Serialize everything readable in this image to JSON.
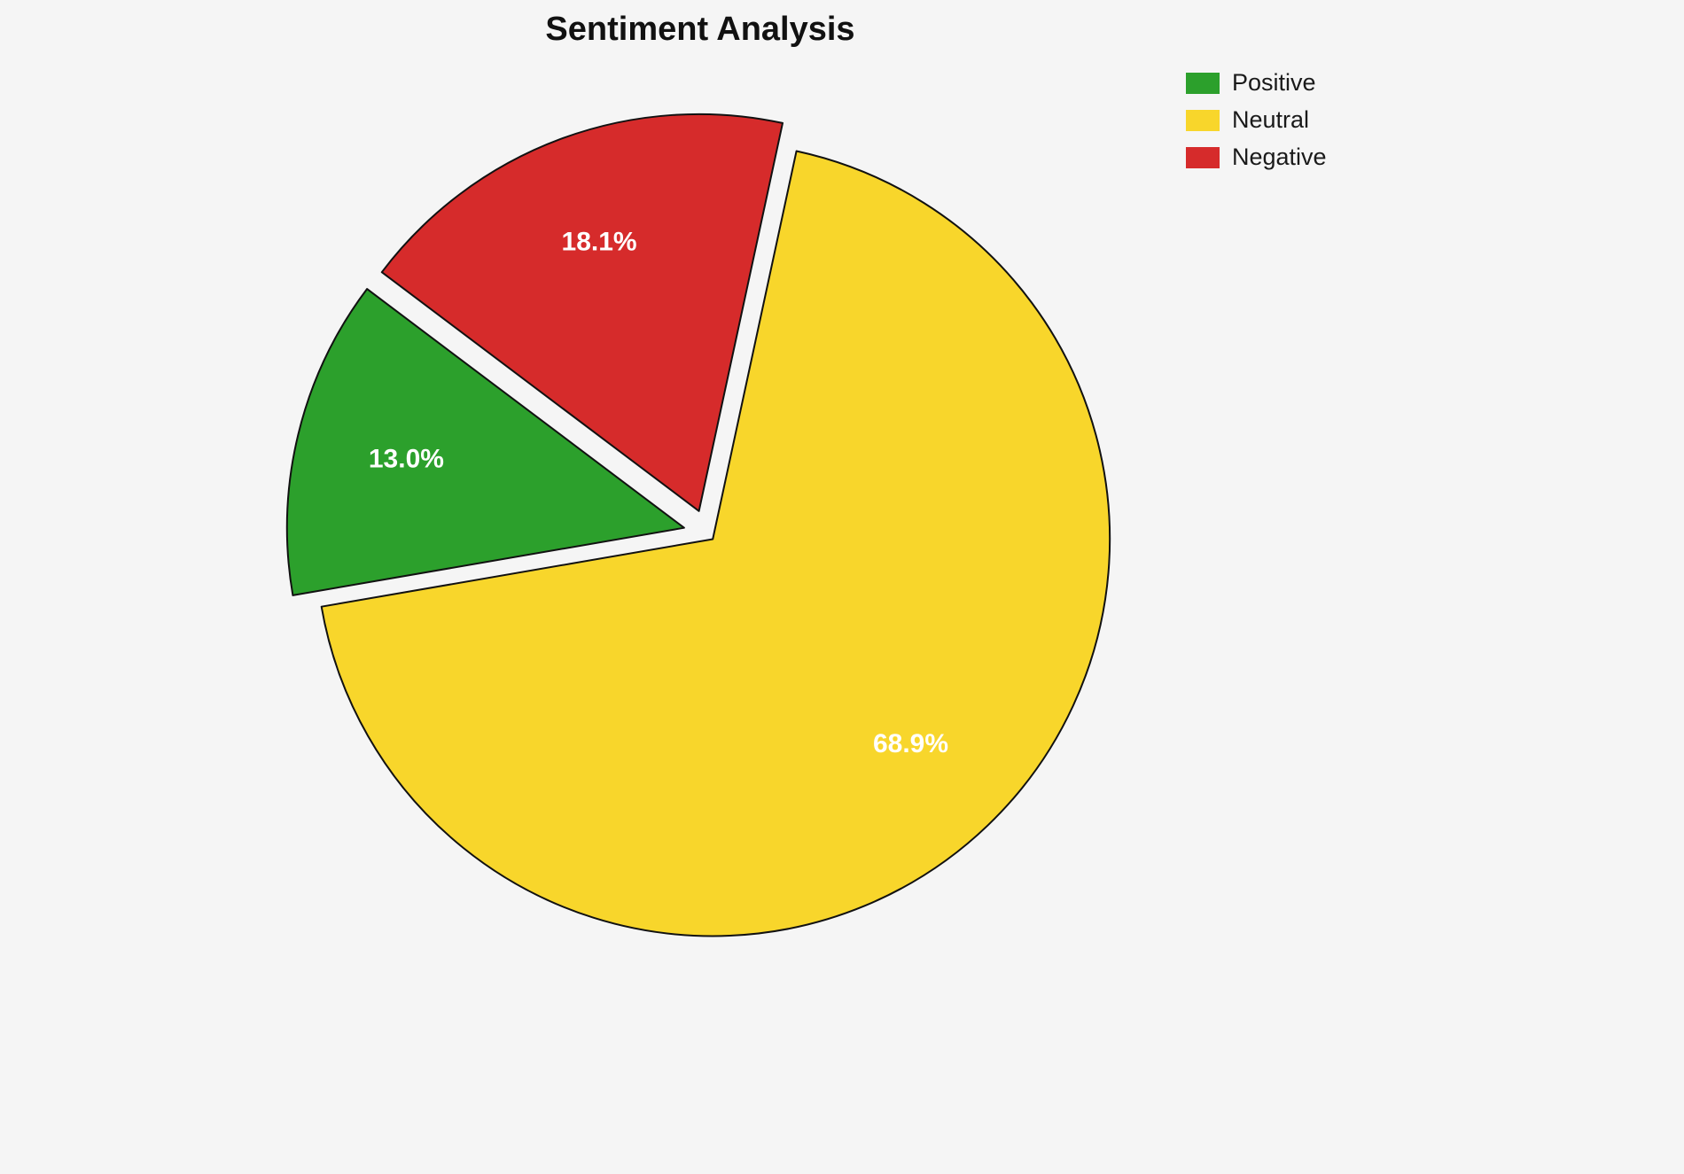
{
  "title": "Sentiment Analysis",
  "background_color": "#f5f5f5",
  "chart_data": {
    "type": "pie",
    "title": "Sentiment Analysis",
    "categories": [
      "Positive",
      "Neutral",
      "Negative"
    ],
    "values": [
      13.0,
      68.9,
      18.1
    ],
    "percent_labels": [
      "13.0%",
      "68.9%",
      "18.1%"
    ],
    "colors": [
      "#2ca02c",
      "#f8d62b",
      "#d62b2b"
    ],
    "edge_color": "#111111",
    "label_color": "#ffffff",
    "start_angle": 143,
    "counterclockwise": true,
    "explode": [
      0.06,
      0.02,
      0.06
    ],
    "legend_position": "upper right",
    "legend_frame": false
  },
  "legend": {
    "items": [
      {
        "label": "Positive",
        "color": "#2ca02c"
      },
      {
        "label": "Neutral",
        "color": "#f8d62b"
      },
      {
        "label": "Negative",
        "color": "#d62b2b"
      }
    ]
  }
}
